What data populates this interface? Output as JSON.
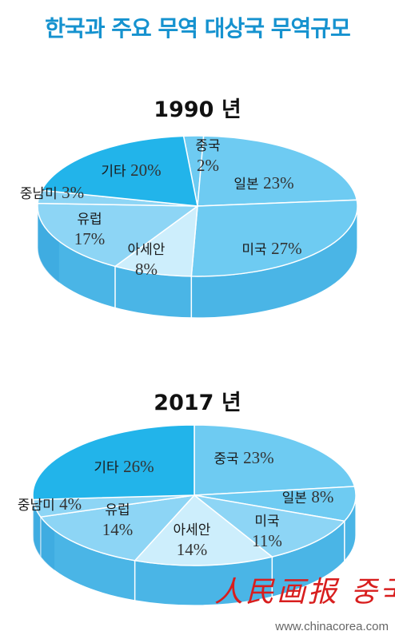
{
  "title": "한국과 주요 무역 대상국 무역규모",
  "logo_text": "人民画报 중국",
  "source": "www.chinacorea.com",
  "colors": {
    "title": "#1592cf",
    "slice_dark": "#22b4ea",
    "slice_mid": "#6ecbf2",
    "slice_light": "#a6def8",
    "slice_lightest": "#cdeefc",
    "side": "#4ab5e6",
    "side_dark": "#2a9cd8",
    "logo": "#d81e1e"
  },
  "chart_data": [
    {
      "type": "pie",
      "title": "1990 년",
      "categories": [
        "중국",
        "일본",
        "미국",
        "아세안",
        "유럽",
        "중남미",
        "기타"
      ],
      "values": [
        2,
        23,
        27,
        8,
        17,
        3,
        20
      ],
      "value_labels": [
        "2%",
        "23%",
        "27%",
        "8%",
        "17%",
        "3%",
        "20%"
      ],
      "slice_colors": [
        "#6ecbf2",
        "#6ecbf2",
        "#6ecbf2",
        "#cdeefc",
        "#8dd5f5",
        "#8dd5f5",
        "#22b4ea"
      ]
    },
    {
      "type": "pie",
      "title": "2017 년",
      "categories": [
        "중국",
        "일본",
        "미국",
        "아세안",
        "유럽",
        "중남미",
        "기타"
      ],
      "values": [
        23,
        8,
        11,
        14,
        14,
        4,
        26
      ],
      "value_labels": [
        "23%",
        "8%",
        "11%",
        "14%",
        "14%",
        "4%",
        "26%"
      ],
      "slice_colors": [
        "#6ecbf2",
        "#6ecbf2",
        "#8dd5f5",
        "#cdeefc",
        "#8dd5f5",
        "#8dd5f5",
        "#22b4ea"
      ]
    }
  ]
}
